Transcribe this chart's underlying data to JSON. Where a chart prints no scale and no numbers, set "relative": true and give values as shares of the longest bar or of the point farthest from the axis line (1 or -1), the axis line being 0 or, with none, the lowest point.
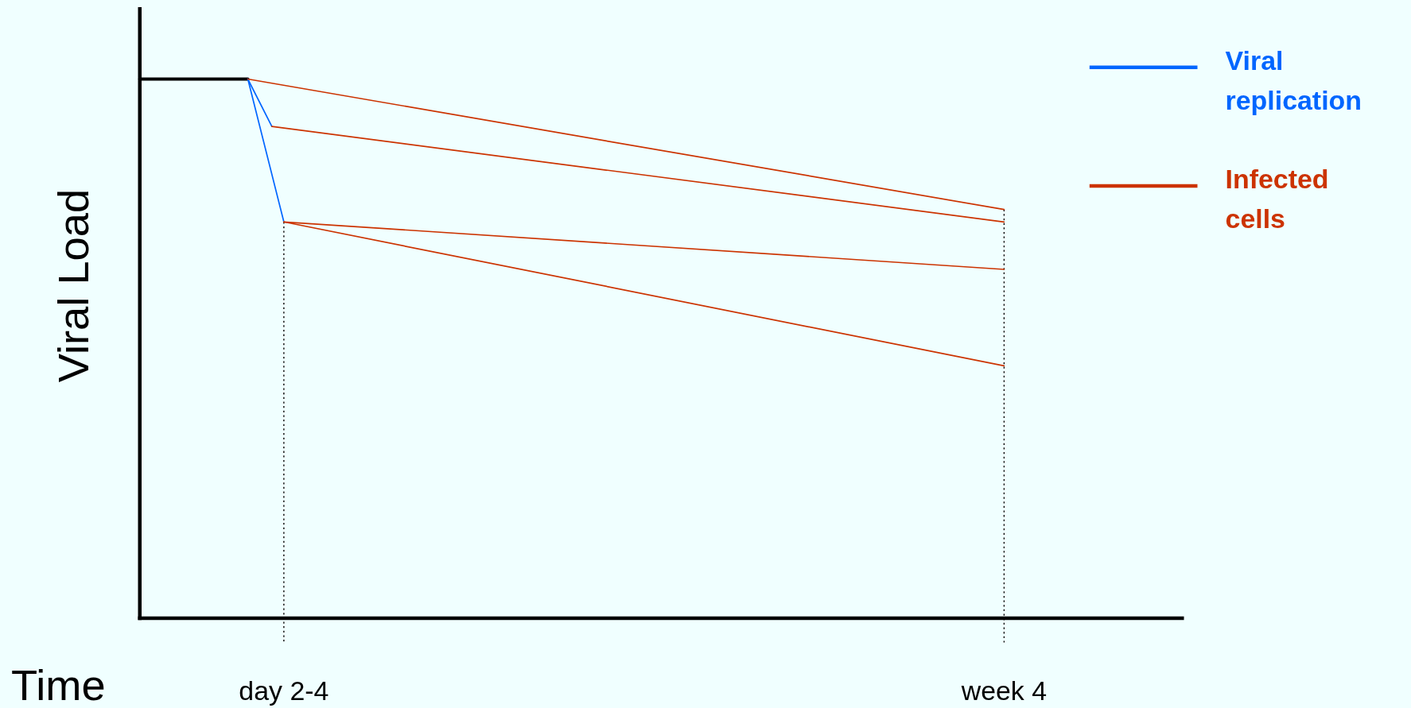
{
  "chart_data": {
    "type": "line",
    "relative": true,
    "xlabel": "Time",
    "ylabel": "Viral Load",
    "categories": [
      null,
      null,
      null,
      null,
      null,
      null,
      null,
      null,
      null,
      null,
      null,
      null,
      "day 2-4",
      null,
      null,
      null,
      null,
      null,
      null,
      null,
      null,
      null,
      null,
      null,
      null,
      null,
      null,
      null,
      null,
      null,
      null,
      null,
      null,
      null,
      null,
      null,
      null,
      null,
      null,
      null,
      null,
      null,
      null,
      null,
      null,
      null,
      null,
      null,
      null,
      null,
      null,
      null,
      null,
      null,
      null,
      null,
      null,
      null,
      null,
      null,
      null,
      null,
      null,
      null,
      null,
      null,
      null,
      null,
      null,
      null,
      null,
      null,
      "week 4"
    ],
    "tick_labels": "x",
    "grid": false,
    "legend": "right",
    "marker": "none",
    "line_style": "solid",
    "series": [
      {
        "color": "#000000",
        "values": [
          1,
          null,
          null,
          null,
          null,
          null,
          null,
          null,
          null,
          1,
          null,
          null,
          null,
          null,
          null,
          null,
          null,
          null,
          null,
          null,
          null,
          null,
          null,
          null,
          null,
          null,
          null,
          null,
          null,
          null,
          null,
          null,
          null,
          null,
          null,
          null,
          null,
          null,
          null,
          null,
          null,
          null,
          null,
          null,
          null,
          null,
          null,
          null,
          null,
          null,
          null,
          null,
          null,
          null,
          null,
          null,
          null,
          null,
          null,
          null,
          null,
          null,
          null,
          null,
          null,
          null,
          null,
          null,
          null,
          null,
          null,
          null,
          null
        ]
      },
      {
        "name": "Viral replication",
        "color": "#0066ff",
        "values": [
          null,
          null,
          null,
          null,
          null,
          null,
          null,
          null,
          null,
          1,
          null,
          0.912,
          null,
          null,
          null,
          null,
          null,
          null,
          null,
          null,
          null,
          null,
          null,
          null,
          null,
          null,
          null,
          null,
          null,
          null,
          null,
          null,
          null,
          null,
          null,
          null,
          null,
          null,
          null,
          null,
          null,
          null,
          null,
          null,
          null,
          null,
          null,
          null,
          null,
          null,
          null,
          null,
          null,
          null,
          null,
          null,
          null,
          null,
          null,
          null,
          null,
          null,
          null,
          null,
          null,
          null,
          null,
          null,
          null,
          null,
          null,
          null,
          null
        ]
      },
      {
        "color": "#0066ff",
        "values": [
          null,
          null,
          null,
          null,
          null,
          null,
          null,
          null,
          null,
          1,
          null,
          null,
          0.735,
          null,
          null,
          null,
          null,
          null,
          null,
          null,
          null,
          null,
          null,
          null,
          null,
          null,
          null,
          null,
          null,
          null,
          null,
          null,
          null,
          null,
          null,
          null,
          null,
          null,
          null,
          null,
          null,
          null,
          null,
          null,
          null,
          null,
          null,
          null,
          null,
          null,
          null,
          null,
          null,
          null,
          null,
          null,
          null,
          null,
          null,
          null,
          null,
          null,
          null,
          null,
          null,
          null,
          null,
          null,
          null,
          null,
          null,
          null,
          null
        ]
      },
      {
        "name": "Infected cells",
        "color": "#cc3300",
        "values": [
          null,
          null,
          null,
          null,
          null,
          null,
          null,
          null,
          null,
          1,
          null,
          null,
          null,
          null,
          null,
          null,
          null,
          null,
          null,
          null,
          null,
          null,
          null,
          null,
          null,
          null,
          null,
          null,
          null,
          null,
          null,
          null,
          null,
          null,
          null,
          null,
          null,
          null,
          null,
          null,
          null,
          null,
          null,
          null,
          null,
          null,
          null,
          null,
          null,
          null,
          null,
          null,
          null,
          null,
          null,
          null,
          null,
          null,
          null,
          null,
          null,
          null,
          null,
          null,
          null,
          null,
          null,
          null,
          null,
          null,
          null,
          null,
          0.758
        ]
      },
      {
        "color": "#cc3300",
        "values": [
          null,
          null,
          null,
          null,
          null,
          null,
          null,
          null,
          null,
          null,
          null,
          0.912,
          null,
          null,
          null,
          null,
          null,
          null,
          null,
          null,
          null,
          null,
          null,
          null,
          null,
          null,
          null,
          null,
          null,
          null,
          null,
          null,
          null,
          null,
          null,
          null,
          null,
          null,
          null,
          null,
          null,
          null,
          null,
          null,
          null,
          null,
          null,
          null,
          null,
          null,
          null,
          null,
          null,
          null,
          null,
          null,
          null,
          null,
          null,
          null,
          null,
          null,
          null,
          null,
          null,
          null,
          null,
          null,
          null,
          null,
          null,
          null,
          0.735
        ]
      },
      {
        "color": "#cc3300",
        "values": [
          null,
          null,
          null,
          null,
          null,
          null,
          null,
          null,
          null,
          null,
          null,
          null,
          0.735,
          null,
          null,
          null,
          null,
          null,
          null,
          null,
          null,
          null,
          null,
          null,
          null,
          null,
          null,
          null,
          null,
          null,
          null,
          null,
          null,
          null,
          null,
          null,
          null,
          null,
          null,
          null,
          null,
          null,
          null,
          null,
          null,
          null,
          null,
          null,
          null,
          null,
          null,
          null,
          null,
          null,
          null,
          null,
          null,
          null,
          null,
          null,
          null,
          null,
          null,
          null,
          null,
          null,
          null,
          null,
          null,
          null,
          null,
          null,
          0.647
        ]
      },
      {
        "color": "#cc3300",
        "values": [
          null,
          null,
          null,
          null,
          null,
          null,
          null,
          null,
          null,
          null,
          null,
          null,
          0.735,
          null,
          null,
          null,
          null,
          null,
          null,
          null,
          null,
          null,
          null,
          null,
          null,
          null,
          null,
          null,
          null,
          null,
          null,
          null,
          null,
          null,
          null,
          null,
          null,
          null,
          null,
          null,
          null,
          null,
          null,
          null,
          null,
          null,
          null,
          null,
          null,
          null,
          null,
          null,
          null,
          null,
          null,
          null,
          null,
          null,
          null,
          null,
          null,
          null,
          null,
          null,
          null,
          null,
          null,
          null,
          null,
          null,
          null,
          null,
          0.468
        ]
      }
    ],
    "ref_lines": [
      {
        "axis": "x",
        "value": "day 2-4",
        "color": "#000000",
        "line_style": "dotted"
      },
      {
        "axis": "x",
        "value": "week 4",
        "color": "#000000",
        "line_style": "dotted"
      }
    ]
  }
}
